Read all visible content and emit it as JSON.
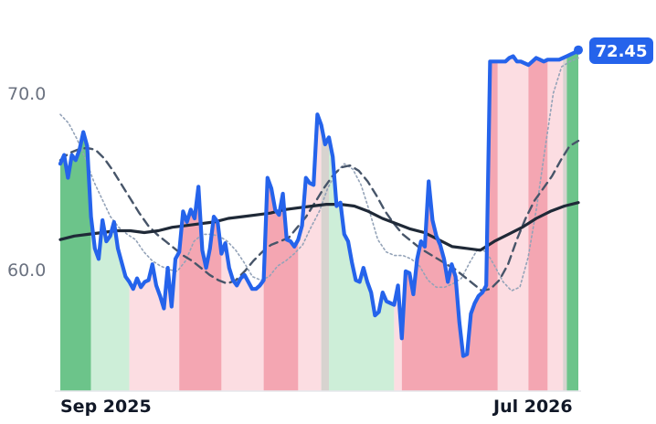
{
  "chart_data": {
    "type": "line",
    "title": "",
    "xlabel": "",
    "ylabel": "",
    "ylim": [
      53.0,
      74.5
    ],
    "x_tick_labels": [
      "Sep 2025",
      "Jul 2026"
    ],
    "y_ticks": [
      60.0,
      70.0
    ],
    "y_tick_labels": [
      "60.0",
      "70.0"
    ],
    "last_value_label": "72.45",
    "colors": {
      "price": "#2563eb",
      "long_ma": "#1f2937",
      "mid_ma": "#475569",
      "short_ma": "#94a3b8",
      "up_strong": "#6cc48a",
      "up_light": "#cdeed8",
      "down_strong": "#f4a6b2",
      "down_light": "#fcdde2",
      "neutral": "#d7d3cf"
    },
    "regime_bands": [
      {
        "start": 0,
        "end": 8,
        "kind": "up_strong"
      },
      {
        "start": 8,
        "end": 18,
        "kind": "up_light"
      },
      {
        "start": 18,
        "end": 31,
        "kind": "down_light"
      },
      {
        "start": 31,
        "end": 42,
        "kind": "down_strong"
      },
      {
        "start": 42,
        "end": 53,
        "kind": "down_light"
      },
      {
        "start": 53,
        "end": 62,
        "kind": "down_strong"
      },
      {
        "start": 62,
        "end": 68,
        "kind": "down_light"
      },
      {
        "start": 68,
        "end": 70,
        "kind": "neutral"
      },
      {
        "start": 70,
        "end": 87,
        "kind": "up_light"
      },
      {
        "start": 87,
        "end": 89,
        "kind": "down_light"
      },
      {
        "start": 89,
        "end": 114,
        "kind": "down_strong"
      },
      {
        "start": 114,
        "end": 122,
        "kind": "down_light"
      },
      {
        "start": 122,
        "end": 127,
        "kind": "down_strong"
      },
      {
        "start": 127,
        "end": 131,
        "kind": "down_light"
      },
      {
        "start": 131,
        "end": 132,
        "kind": "neutral"
      },
      {
        "start": 132,
        "end": 150,
        "kind": "up_strong"
      }
    ],
    "series": [
      {
        "key": "price",
        "values": [
          66.0,
          66.5,
          65.2,
          66.5,
          66.2,
          66.8,
          67.8,
          67.0,
          63.0,
          61.2,
          60.6,
          62.8,
          61.6,
          61.9,
          62.7,
          61.2,
          60.4,
          59.6,
          59.3,
          58.9,
          59.5,
          59.0,
          59.3,
          59.4,
          60.3,
          59.1,
          58.5,
          57.8,
          60.1,
          57.9,
          60.6,
          61.0,
          63.3,
          62.7,
          63.4,
          62.9,
          64.7,
          61.1,
          60.1,
          61.2,
          63.0,
          62.7,
          60.9,
          61.5,
          60.1,
          59.4,
          59.1,
          59.5,
          59.7,
          59.3,
          58.9,
          58.9,
          59.1,
          59.4,
          65.2,
          64.6,
          63.4,
          63.1,
          64.3,
          61.7,
          61.6,
          61.3,
          61.7,
          62.5,
          65.2,
          64.9,
          64.8,
          68.8,
          68.2,
          67.1,
          67.5,
          66.4,
          63.6,
          63.8,
          62.0,
          61.6,
          60.4,
          59.4,
          59.3,
          60.1,
          59.3,
          58.7,
          57.4,
          57.6,
          58.7,
          58.2,
          58.1,
          58.0,
          59.1,
          56.1,
          59.9,
          59.8,
          58.6,
          60.6,
          61.6,
          61.3,
          65.0,
          62.8,
          61.9,
          61.4,
          60.6,
          59.3,
          60.3,
          59.6,
          57.0,
          55.1,
          55.2,
          57.5,
          58.1,
          58.5,
          58.7,
          59.1,
          71.8,
          71.8,
          71.8,
          71.8,
          71.8,
          72.0,
          72.1,
          71.8,
          71.8,
          71.7,
          71.6,
          71.8,
          72.0,
          71.9,
          71.8,
          71.9,
          71.9,
          71.9,
          71.9,
          72.0,
          72.1,
          72.2,
          72.3,
          72.45
        ]
      },
      {
        "key": "long_ma",
        "values": [
          61.7,
          61.9,
          62.0,
          62.1,
          62.2,
          62.2,
          62.1,
          62.2,
          62.4,
          62.5,
          62.6,
          62.7,
          62.9,
          63.0,
          63.1,
          63.2,
          63.4,
          63.5,
          63.6,
          63.7,
          63.7,
          63.6,
          63.3,
          62.9,
          62.6,
          62.3,
          62.1,
          61.7,
          61.3,
          61.2,
          61.1,
          61.6,
          62.0,
          62.4,
          62.9,
          63.3,
          63.6,
          63.8
        ]
      },
      {
        "key": "mid_ma",
        "values": [
          66.2,
          66.6,
          66.8,
          66.9,
          66.8,
          66.3,
          65.6,
          64.8,
          64.0,
          63.2,
          62.5,
          62.0,
          61.6,
          61.2,
          60.8,
          60.5,
          60.1,
          59.7,
          59.4,
          59.2,
          59.4,
          59.9,
          60.5,
          61.0,
          61.4,
          61.6,
          61.8,
          62.4,
          63.0,
          63.8,
          64.6,
          65.3,
          65.8,
          65.9,
          65.6,
          65.0,
          64.2,
          63.3,
          62.6,
          62.0,
          61.6,
          61.2,
          60.9,
          60.6,
          60.3,
          60.0,
          59.6,
          59.2,
          58.8,
          58.9,
          59.4,
          60.3,
          61.7,
          62.9,
          63.9,
          64.6,
          65.3,
          66.2,
          67.0,
          67.3
        ]
      },
      {
        "key": "short_ma",
        "values": [
          68.8,
          68.3,
          67.4,
          66.3,
          65.0,
          64.0,
          63.0,
          62.4,
          62.0,
          61.7,
          61.0,
          60.5,
          60.2,
          60.0,
          59.9,
          60.5,
          61.6,
          62.0,
          62.0,
          61.9,
          61.6,
          61.1,
          60.4,
          59.6,
          59.4,
          59.6,
          60.2,
          60.5,
          60.9,
          61.4,
          62.4,
          63.3,
          64.6,
          65.5,
          66.0,
          65.7,
          64.8,
          63.3,
          61.7,
          61.0,
          60.8,
          60.8,
          60.6,
          60.2,
          59.4,
          59.0,
          59.0,
          59.2,
          59.5,
          60.4,
          61.2,
          61.0,
          60.2,
          59.3,
          58.8,
          59.0,
          60.7,
          63.5,
          66.8,
          70.0,
          71.5,
          71.8,
          72.0
        ]
      }
    ]
  }
}
